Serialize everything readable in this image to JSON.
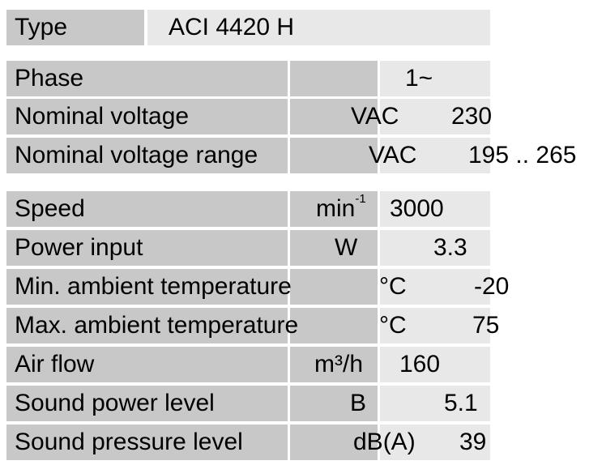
{
  "type_row": {
    "label": "Type",
    "value": "ACI 4420 H"
  },
  "electrical": [
    {
      "label": "Phase",
      "unit": "",
      "value": "1~"
    },
    {
      "label": "Nominal voltage",
      "unit": "VAC",
      "value": "230"
    },
    {
      "label": "Nominal voltage range",
      "unit": "VAC",
      "value": "195 .. 265"
    }
  ],
  "performance": [
    {
      "label": "Speed",
      "unit": "min",
      "unit_sup": "-1",
      "value": "3000"
    },
    {
      "label": "Power input",
      "unit": "W",
      "value": "3.3"
    },
    {
      "label": "Min. ambient temperature",
      "unit": "°C",
      "value": "-20"
    },
    {
      "label": "Max. ambient temperature",
      "unit": "°C",
      "value": "75"
    },
    {
      "label": "Air flow",
      "unit": "m³/h",
      "value": "160"
    },
    {
      "label": "Sound power level",
      "unit": "B",
      "value": "5.1"
    },
    {
      "label": "Sound pressure level",
      "unit": "dB(A)",
      "value": "39"
    }
  ]
}
